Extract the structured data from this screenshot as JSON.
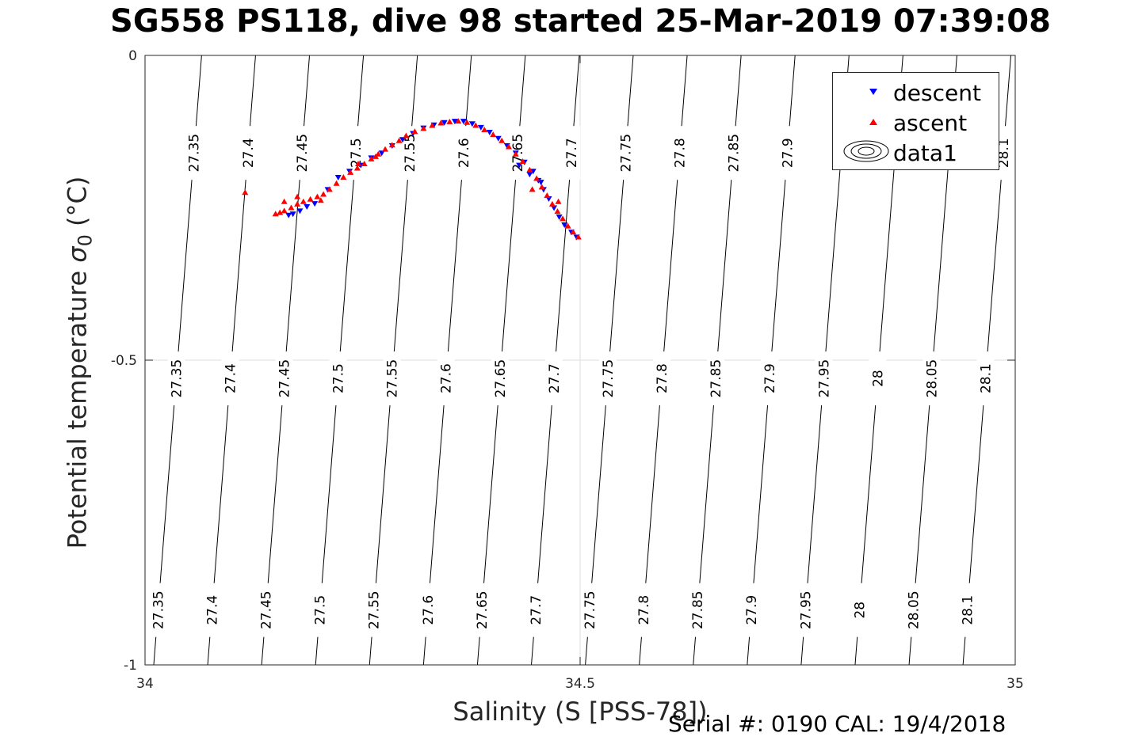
{
  "title": "SG558 PS118, dive 98 started 25-Mar-2019 07:39:08",
  "footer": "Serial #: 0190  CAL: 19/4/2018",
  "chart_data": {
    "type": "scatter",
    "xlabel": "Salinity (S [PSS-78])",
    "ylabel_text": "Potential temperature ",
    "ylabel_symbol": "σ",
    "ylabel_sub": "0",
    "ylabel_unit": " (°C)",
    "xlim": [
      34,
      35
    ],
    "ylim": [
      -1,
      0
    ],
    "xticks": [
      34,
      34.5,
      35
    ],
    "xtick_labels": [
      "34",
      "34.5",
      "35"
    ],
    "yticks": [
      0,
      -0.5,
      -1
    ],
    "ytick_labels": [
      "0",
      "-0.5",
      "-1"
    ],
    "grid": true,
    "legend_position": "top-right",
    "legend": [
      "descent",
      "ascent",
      "data1"
    ],
    "colors": {
      "descent": "#0000ff",
      "ascent": "#ff0000",
      "contour": "#000000",
      "grid": "#dedede"
    },
    "contours": [
      {
        "label": "27.35",
        "x_top": 34.065,
        "x_bottom": 34.01
      },
      {
        "label": "27.4",
        "x_top": 34.127,
        "x_bottom": 34.072
      },
      {
        "label": "27.45",
        "x_top": 34.189,
        "x_bottom": 34.134
      },
      {
        "label": "27.5",
        "x_top": 34.251,
        "x_bottom": 34.196
      },
      {
        "label": "27.55",
        "x_top": 34.313,
        "x_bottom": 34.258
      },
      {
        "label": "27.6",
        "x_top": 34.375,
        "x_bottom": 34.32
      },
      {
        "label": "27.65",
        "x_top": 34.437,
        "x_bottom": 34.382
      },
      {
        "label": "27.7",
        "x_top": 34.499,
        "x_bottom": 34.444
      },
      {
        "label": "27.75",
        "x_top": 34.561,
        "x_bottom": 34.506
      },
      {
        "label": "27.8",
        "x_top": 34.623,
        "x_bottom": 34.568
      },
      {
        "label": "27.85",
        "x_top": 34.685,
        "x_bottom": 34.63
      },
      {
        "label": "27.9",
        "x_top": 34.747,
        "x_bottom": 34.692
      },
      {
        "label": "27.95",
        "x_top": 34.809,
        "x_bottom": 34.754
      },
      {
        "label": "28",
        "x_top": 34.871,
        "x_bottom": 34.816
      },
      {
        "label": "28.05",
        "x_top": 34.933,
        "x_bottom": 34.878
      },
      {
        "label": "28.1",
        "x_top": 34.995,
        "x_bottom": 34.94
      }
    ],
    "contour_label_rows": [
      {
        "y": -0.16,
        "labels": [
          "27.35",
          "27.4",
          "27.45",
          "27.5",
          "27.55",
          "27.6",
          "27.65",
          "27.7",
          "27.75",
          "27.8",
          "27.85",
          "27.9",
          "28.1"
        ]
      },
      {
        "y": -0.53,
        "labels": [
          "27.35",
          "27.4",
          "27.45",
          "27.5",
          "27.55",
          "27.6",
          "27.65",
          "27.7",
          "27.75",
          "27.8",
          "27.85",
          "27.9",
          "27.95",
          "28",
          "28.05",
          "28.1"
        ]
      },
      {
        "y": -0.91,
        "labels": [
          "27.35",
          "27.4",
          "27.45",
          "27.5",
          "27.55",
          "27.6",
          "27.65",
          "27.7",
          "27.75",
          "27.8",
          "27.85",
          "27.9",
          "27.95",
          "28",
          "28.05",
          "28.1"
        ]
      }
    ],
    "series": [
      {
        "name": "descent",
        "points": [
          [
            34.165,
            -0.262
          ],
          [
            34.17,
            -0.26
          ],
          [
            34.178,
            -0.255
          ],
          [
            34.186,
            -0.248
          ],
          [
            34.195,
            -0.243
          ],
          [
            34.21,
            -0.22
          ],
          [
            34.222,
            -0.2
          ],
          [
            34.235,
            -0.19
          ],
          [
            34.248,
            -0.18
          ],
          [
            34.26,
            -0.168
          ],
          [
            34.272,
            -0.16
          ],
          [
            34.284,
            -0.148
          ],
          [
            34.296,
            -0.138
          ],
          [
            34.308,
            -0.128
          ],
          [
            34.32,
            -0.119
          ],
          [
            34.332,
            -0.114
          ],
          [
            34.344,
            -0.11
          ],
          [
            34.356,
            -0.108
          ],
          [
            34.366,
            -0.108
          ],
          [
            34.376,
            -0.112
          ],
          [
            34.386,
            -0.118
          ],
          [
            34.396,
            -0.126
          ],
          [
            34.406,
            -0.136
          ],
          [
            34.416,
            -0.148
          ],
          [
            34.426,
            -0.16
          ],
          [
            34.436,
            -0.175
          ],
          [
            34.446,
            -0.19
          ],
          [
            34.452,
            -0.205
          ],
          [
            34.458,
            -0.22
          ],
          [
            34.464,
            -0.235
          ],
          [
            34.47,
            -0.25
          ],
          [
            34.476,
            -0.265
          ],
          [
            34.482,
            -0.278
          ],
          [
            34.49,
            -0.29
          ],
          [
            34.496,
            -0.298
          ],
          [
            34.43,
            -0.18
          ],
          [
            34.442,
            -0.195
          ],
          [
            34.455,
            -0.208
          ]
        ]
      },
      {
        "name": "ascent",
        "points": [
          [
            34.115,
            -0.225
          ],
          [
            34.15,
            -0.26
          ],
          [
            34.155,
            -0.258
          ],
          [
            34.16,
            -0.255
          ],
          [
            34.168,
            -0.25
          ],
          [
            34.175,
            -0.244
          ],
          [
            34.182,
            -0.24
          ],
          [
            34.19,
            -0.236
          ],
          [
            34.198,
            -0.232
          ],
          [
            34.205,
            -0.228
          ],
          [
            34.212,
            -0.22
          ],
          [
            34.22,
            -0.21
          ],
          [
            34.228,
            -0.2
          ],
          [
            34.236,
            -0.192
          ],
          [
            34.244,
            -0.185
          ],
          [
            34.252,
            -0.178
          ],
          [
            34.26,
            -0.17
          ],
          [
            34.268,
            -0.162
          ],
          [
            34.276,
            -0.154
          ],
          [
            34.284,
            -0.147
          ],
          [
            34.292,
            -0.14
          ],
          [
            34.3,
            -0.132
          ],
          [
            34.31,
            -0.125
          ],
          [
            34.32,
            -0.12
          ],
          [
            34.33,
            -0.115
          ],
          [
            34.34,
            -0.111
          ],
          [
            34.35,
            -0.109
          ],
          [
            34.36,
            -0.108
          ],
          [
            34.37,
            -0.11
          ],
          [
            34.38,
            -0.115
          ],
          [
            34.39,
            -0.122
          ],
          [
            34.4,
            -0.13
          ],
          [
            34.41,
            -0.14
          ],
          [
            34.418,
            -0.15
          ],
          [
            34.426,
            -0.162
          ],
          [
            34.434,
            -0.174
          ],
          [
            34.442,
            -0.188
          ],
          [
            34.45,
            -0.202
          ],
          [
            34.456,
            -0.216
          ],
          [
            34.462,
            -0.23
          ],
          [
            34.468,
            -0.244
          ],
          [
            34.474,
            -0.256
          ],
          [
            34.48,
            -0.268
          ],
          [
            34.486,
            -0.28
          ],
          [
            34.492,
            -0.29
          ],
          [
            34.498,
            -0.298
          ],
          [
            34.16,
            -0.24
          ],
          [
            34.175,
            -0.232
          ],
          [
            34.202,
            -0.238
          ],
          [
            34.245,
            -0.178
          ],
          [
            34.265,
            -0.166
          ],
          [
            34.445,
            -0.22
          ],
          [
            34.475,
            -0.24
          ]
        ]
      }
    ]
  }
}
